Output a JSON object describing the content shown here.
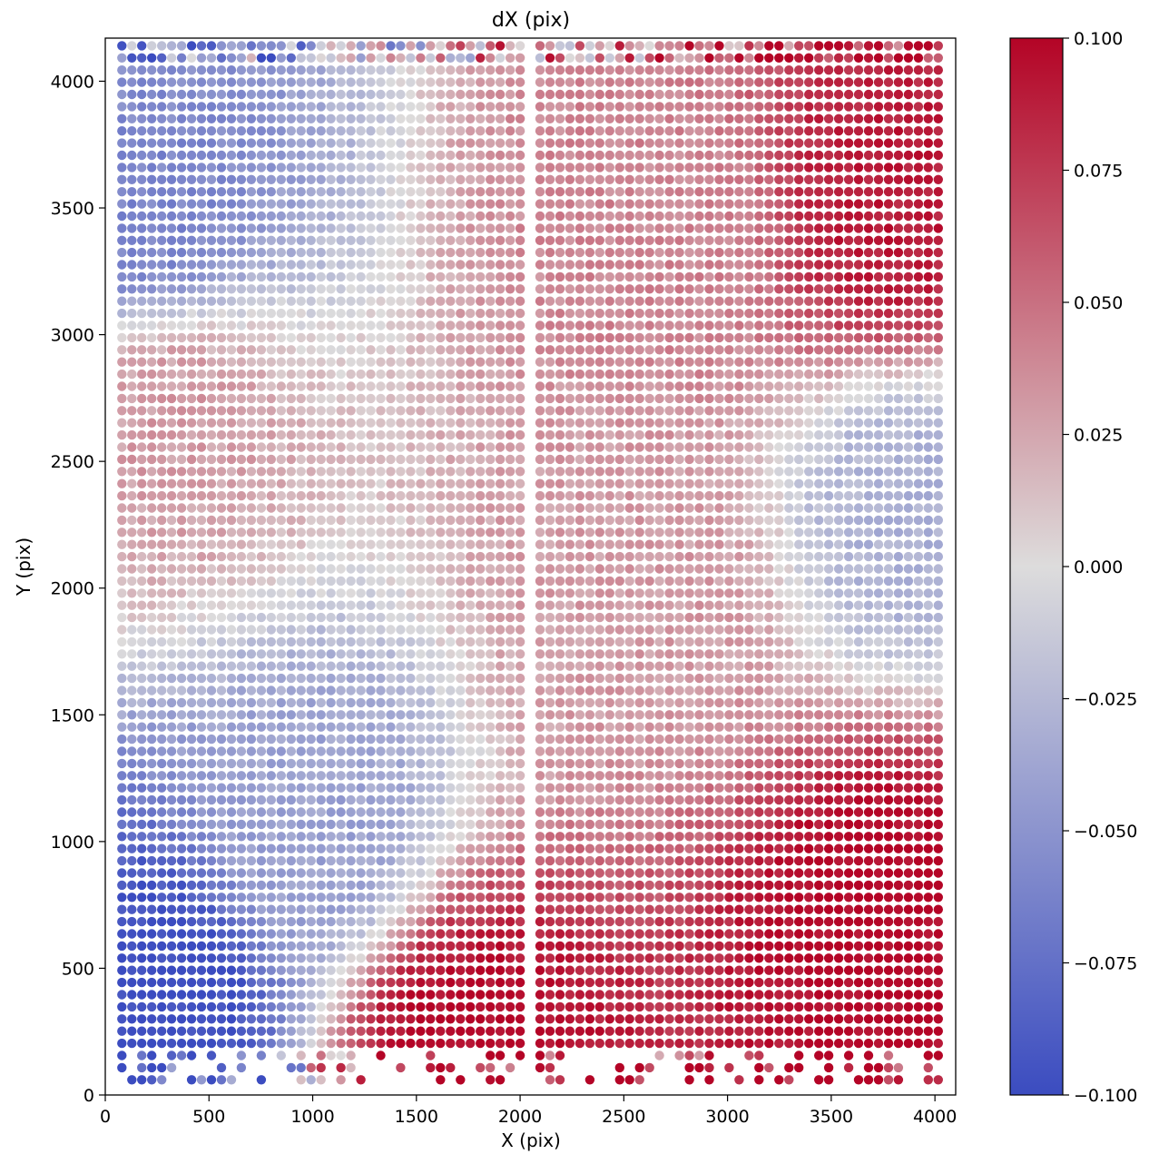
{
  "chart_data": {
    "type": "scatter",
    "title": "dX (pix)",
    "xlabel": "X (pix)",
    "ylabel": "Y (pix)",
    "xlim": [
      0,
      4100
    ],
    "ylim": [
      0,
      4170
    ],
    "xticks": [
      0,
      500,
      1000,
      1500,
      2000,
      2500,
      3000,
      3500,
      4000
    ],
    "yticks": [
      0,
      500,
      1000,
      1500,
      2000,
      2500,
      3000,
      3500,
      4000
    ],
    "xtick_labels": [
      "0",
      "500",
      "1000",
      "1500",
      "2000",
      "2500",
      "3000",
      "3500",
      "4000"
    ],
    "ytick_labels": [
      "0",
      "500",
      "1000",
      "1500",
      "2000",
      "2500",
      "3000",
      "3500",
      "4000"
    ],
    "grid": false,
    "colormap": "coolwarm",
    "color_low": "#3b4cc0",
    "color_mid": "#dddcdc",
    "color_high": "#b40426",
    "colorbar": {
      "label": "",
      "range": [
        -0.1,
        0.1
      ],
      "ticks": [
        0.1,
        0.075,
        0.05,
        0.025,
        0.0,
        -0.025,
        -0.05,
        -0.075,
        -0.1
      ],
      "tick_labels": [
        "0.100",
        "0.075",
        "0.050",
        "0.025",
        "0.000",
        "−0.025",
        "−0.050",
        "−0.075",
        "−0.100"
      ]
    },
    "grid_x_range": [
      80,
      4030
    ],
    "grid_y_range": [
      60,
      4160
    ],
    "gap_x": [
      2030,
      2070
    ],
    "field_samples": [
      {
        "x": 200,
        "y": 3450,
        "value": -0.06
      },
      {
        "x": 300,
        "y": 2700,
        "value": 0.03
      },
      {
        "x": 300,
        "y": 400,
        "value": -0.1
      },
      {
        "x": 3800,
        "y": 3500,
        "value": 0.09
      },
      {
        "x": 3800,
        "y": 700,
        "value": 0.1
      },
      {
        "x": 3900,
        "y": 2300,
        "value": -0.03
      },
      {
        "x": 2700,
        "y": 3400,
        "value": 0.04
      },
      {
        "x": 2600,
        "y": 2000,
        "value": 0.03
      },
      {
        "x": 1000,
        "y": 1000,
        "value": -0.04
      },
      {
        "x": 1700,
        "y": 200,
        "value": 0.1
      }
    ]
  }
}
